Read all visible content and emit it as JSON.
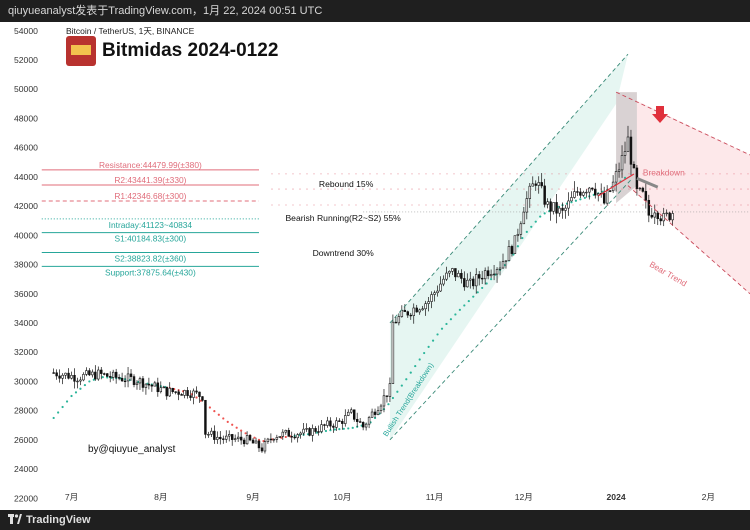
{
  "window": {
    "header_text": "qiuyueanalyst发表于TradingView.com，1月 22, 2024 00:51 UTC",
    "footer_brand": "TradingView"
  },
  "colors": {
    "resistance": "#e06c7a",
    "support": "#26a69a",
    "channel_up_fill": "#e3f5f1",
    "bear_fill": "#fde8ea",
    "dark_box": "#d9d2d3",
    "candle": "#111111",
    "ma_up": "#2bb59a",
    "ma_down": "#ef5350"
  },
  "chart_data": {
    "type": "candlestick",
    "symbol": "Bitcoin / TetherUS, 1天, BINANCE",
    "title": "Bitmidas 2024-0122",
    "author": "by@qiuyue_analyst",
    "y_ticks": [
      22000,
      24000,
      26000,
      28000,
      30000,
      32000,
      34000,
      36000,
      38000,
      40000,
      42000,
      44000,
      46000,
      48000,
      50000,
      52000,
      54000
    ],
    "x_ticks": [
      {
        "label": "7月",
        "day": 6
      },
      {
        "label": "8月",
        "day": 36
      },
      {
        "label": "9月",
        "day": 67
      },
      {
        "label": "10月",
        "day": 97
      },
      {
        "label": "11月",
        "day": 128
      },
      {
        "label": "12月",
        "day": 158
      },
      {
        "label": "2024",
        "day": 189
      },
      {
        "label": "2月",
        "day": 220
      }
    ],
    "ylim": [
      21200,
      54600
    ],
    "xlim": [
      -14,
      234
    ],
    "last_price": 41600,
    "price_anchors": [
      [
        0,
        30600
      ],
      [
        8,
        30300
      ],
      [
        15,
        30500
      ],
      [
        20,
        30300
      ],
      [
        28,
        30100
      ],
      [
        38,
        29300
      ],
      [
        45,
        29300
      ],
      [
        50,
        29000
      ],
      [
        51,
        26500
      ],
      [
        56,
        26100
      ],
      [
        65,
        26000
      ],
      [
        70,
        25400
      ],
      [
        74,
        26300
      ],
      [
        78,
        26400
      ],
      [
        85,
        26500
      ],
      [
        92,
        27000
      ],
      [
        96,
        27200
      ],
      [
        100,
        27800
      ],
      [
        104,
        26900
      ],
      [
        107,
        27800
      ],
      [
        110,
        28600
      ],
      [
        113,
        29500
      ],
      [
        114,
        34000
      ],
      [
        117,
        34500
      ],
      [
        121,
        35000
      ],
      [
        126,
        35500
      ],
      [
        131,
        37000
      ],
      [
        134,
        37500
      ],
      [
        140,
        36600
      ],
      [
        145,
        37500
      ],
      [
        150,
        38000
      ],
      [
        155,
        39500
      ],
      [
        158,
        42000
      ],
      [
        162,
        43800
      ],
      [
        166,
        42000
      ],
      [
        171,
        41500
      ],
      [
        176,
        43000
      ],
      [
        181,
        43500
      ],
      [
        185,
        42200
      ],
      [
        188,
        43500
      ],
      [
        191,
        45200
      ],
      [
        193,
        46500
      ],
      [
        196,
        42900
      ],
      [
        198,
        42700
      ],
      [
        200,
        41400
      ],
      [
        202,
        41900
      ],
      [
        205,
        41100
      ],
      [
        208,
        41600
      ]
    ],
    "ma_anchors": [
      [
        0,
        27500
      ],
      [
        6,
        29000
      ],
      [
        12,
        30000
      ],
      [
        16,
        30300
      ],
      [
        23,
        30200
      ],
      [
        30,
        29900
      ],
      [
        38,
        29600
      ],
      [
        46,
        29200
      ],
      [
        52,
        28300
      ],
      [
        58,
        27300
      ],
      [
        64,
        26500
      ],
      [
        70,
        25900
      ],
      [
        78,
        26200
      ],
      [
        86,
        26400
      ],
      [
        94,
        26700
      ],
      [
        100,
        26800
      ],
      [
        106,
        27100
      ],
      [
        112,
        28300
      ],
      [
        118,
        30000
      ],
      [
        124,
        31800
      ],
      [
        130,
        33500
      ],
      [
        136,
        34800
      ],
      [
        142,
        36000
      ],
      [
        148,
        37200
      ],
      [
        154,
        38500
      ],
      [
        158,
        40000
      ],
      [
        164,
        41400
      ],
      [
        170,
        42000
      ],
      [
        176,
        42400
      ],
      [
        182,
        42800
      ],
      [
        186,
        43100
      ],
      [
        190,
        43600
      ],
      [
        193,
        44100
      ]
    ],
    "levels": [
      {
        "label": "Resistance:44479.99(±380)",
        "value": 44480,
        "kind": "resistance",
        "style": "solid"
      },
      {
        "label": "R2:43441.39(±330)",
        "value": 43441,
        "kind": "resistance",
        "style": "solid"
      },
      {
        "label": "R1:42346.68(±300)",
        "value": 42347,
        "kind": "resistance",
        "style": "dashed"
      },
      {
        "label": "Intraday:41123~40834",
        "value": 41123,
        "kind": "support",
        "style": "dotted"
      },
      {
        "label": "S1:40184.83(±300)",
        "value": 40185,
        "kind": "support",
        "style": "solid"
      },
      {
        "label": "S2:38823.82(±360)",
        "value": 38824,
        "kind": "support",
        "style": "solid"
      },
      {
        "label": "Support:37875.64(±430)",
        "value": 37876,
        "kind": "support",
        "style": "solid"
      }
    ],
    "scenarios": [
      {
        "label": "Rebound  15%",
        "value": 43500,
        "day": 105
      },
      {
        "label": "Bearish Running(R2~S2) 55%",
        "value": 41200,
        "day": 104
      },
      {
        "label": "Downtrend  30%",
        "value": 38800,
        "day": 104
      }
    ],
    "annotations": [
      {
        "label": "Breakdown",
        "kind": "bear"
      },
      {
        "label": "Bear Trend",
        "kind": "bear"
      },
      {
        "label": "Bullish Trend(Breakdown)",
        "kind": "bull"
      }
    ]
  }
}
